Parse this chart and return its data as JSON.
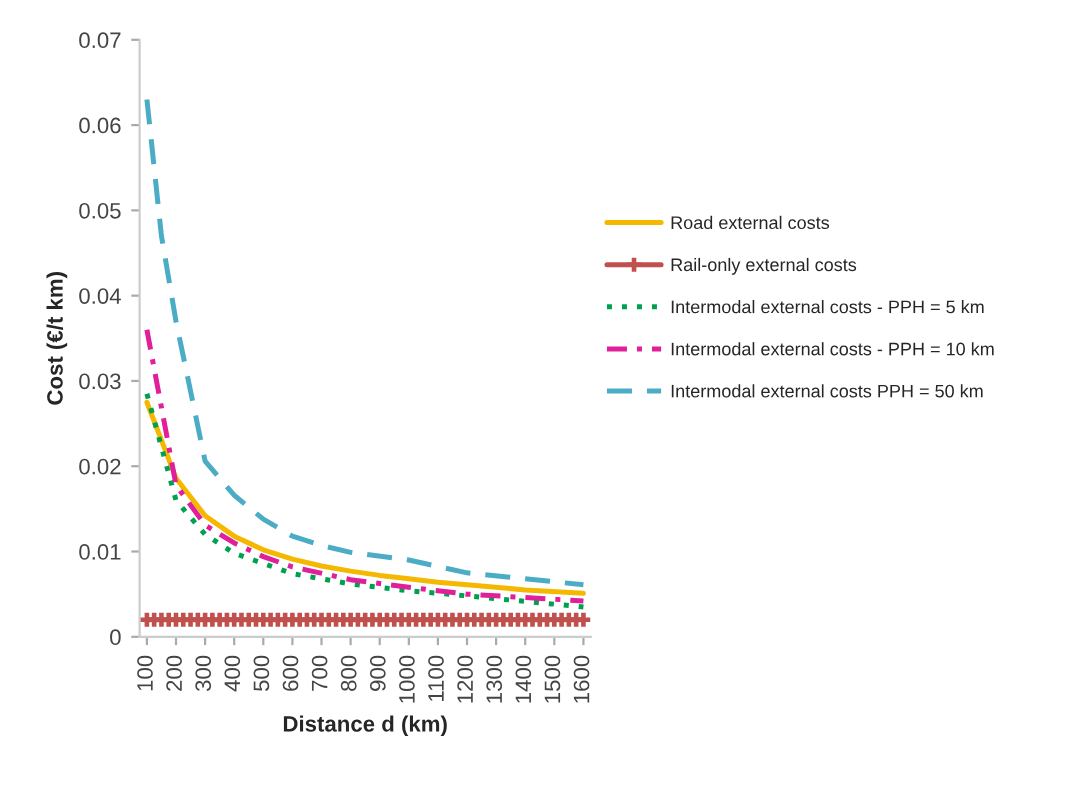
{
  "chart_data": {
    "type": "line",
    "xlabel": "Distance d (km)",
    "ylabel": "Cost (€/t km)",
    "xlim": [
      75,
      1625
    ],
    "xticks": [
      100,
      200,
      300,
      400,
      500,
      600,
      700,
      800,
      900,
      1000,
      1100,
      1200,
      1300,
      1400,
      1500,
      1600
    ],
    "ylim": [
      0,
      0.07
    ],
    "yticks": [
      0,
      0.01,
      0.02,
      0.03,
      0.04,
      0.05,
      0.06,
      0.07
    ],
    "grid": false,
    "legend": "right",
    "series": [
      {
        "name": "Road external costs",
        "color": "#f5b800",
        "line_style": "solid",
        "marker": "none",
        "x": [
          100,
          200,
          300,
          400,
          500,
          600,
          700,
          800,
          900,
          1000,
          1100,
          1200,
          1400,
          1600
        ],
        "values": [
          0.0275,
          0.0186,
          0.0142,
          0.0118,
          0.0102,
          0.0091,
          0.0083,
          0.0077,
          0.0072,
          0.0068,
          0.0064,
          0.0061,
          0.0055,
          0.0051
        ]
      },
      {
        "name": "Rail-only external costs",
        "color": "#c0504d",
        "line_style": "solid",
        "marker": "cross",
        "x": [
          100,
          125,
          150,
          175,
          200,
          225,
          250,
          275,
          300,
          325,
          350,
          375,
          400,
          425,
          450,
          475,
          500,
          525,
          550,
          575,
          600,
          625,
          650,
          675,
          700,
          725,
          750,
          775,
          800,
          825,
          850,
          875,
          900,
          925,
          950,
          975,
          1000,
          1025,
          1050,
          1075,
          1100,
          1125,
          1150,
          1175,
          1200,
          1225,
          1250,
          1275,
          1300,
          1325,
          1350,
          1375,
          1400,
          1425,
          1450,
          1475,
          1500,
          1525,
          1550,
          1575,
          1600
        ],
        "values": [
          0.002,
          0.002,
          0.002,
          0.002,
          0.002,
          0.002,
          0.002,
          0.002,
          0.002,
          0.002,
          0.002,
          0.002,
          0.002,
          0.002,
          0.002,
          0.002,
          0.002,
          0.002,
          0.002,
          0.002,
          0.002,
          0.002,
          0.002,
          0.002,
          0.002,
          0.002,
          0.002,
          0.002,
          0.002,
          0.002,
          0.002,
          0.002,
          0.002,
          0.002,
          0.002,
          0.002,
          0.002,
          0.002,
          0.002,
          0.002,
          0.002,
          0.002,
          0.002,
          0.002,
          0.002,
          0.002,
          0.002,
          0.002,
          0.002,
          0.002,
          0.002,
          0.002,
          0.002,
          0.002,
          0.002,
          0.002,
          0.002,
          0.002,
          0.002,
          0.002,
          0.002
        ]
      },
      {
        "name": "Intermodal external costs - PPH = 5 km",
        "color": "#00a050",
        "line_style": "dotted",
        "marker": "none",
        "x": [
          100,
          200,
          300,
          400,
          500,
          600,
          800,
          1000,
          1200,
          1600
        ],
        "values": [
          0.0285,
          0.016,
          0.012,
          0.0098,
          0.0086,
          0.0074,
          0.0062,
          0.0054,
          0.0048,
          0.0035
        ]
      },
      {
        "name": "Intermodal external costs - PPH = 10 km",
        "color": "#e0209a",
        "line_style": "dashdot",
        "marker": "none",
        "x": [
          100,
          200,
          300,
          400,
          500,
          600,
          800,
          1000,
          1200,
          1600
        ],
        "values": [
          0.036,
          0.0178,
          0.0131,
          0.011,
          0.0094,
          0.0082,
          0.0067,
          0.0058,
          0.005,
          0.0042
        ]
      },
      {
        "name": "Intermodal external costs PPH = 50 km",
        "color": "#4bacc6",
        "line_style": "dashed",
        "marker": "none",
        "x": [
          100,
          150,
          200,
          300,
          400,
          500,
          600,
          700,
          800,
          1000,
          1200,
          1600
        ],
        "values": [
          0.063,
          0.047,
          0.037,
          0.0206,
          0.0166,
          0.0138,
          0.0118,
          0.0107,
          0.0099,
          0.009,
          0.0075,
          0.0061
        ]
      }
    ]
  }
}
